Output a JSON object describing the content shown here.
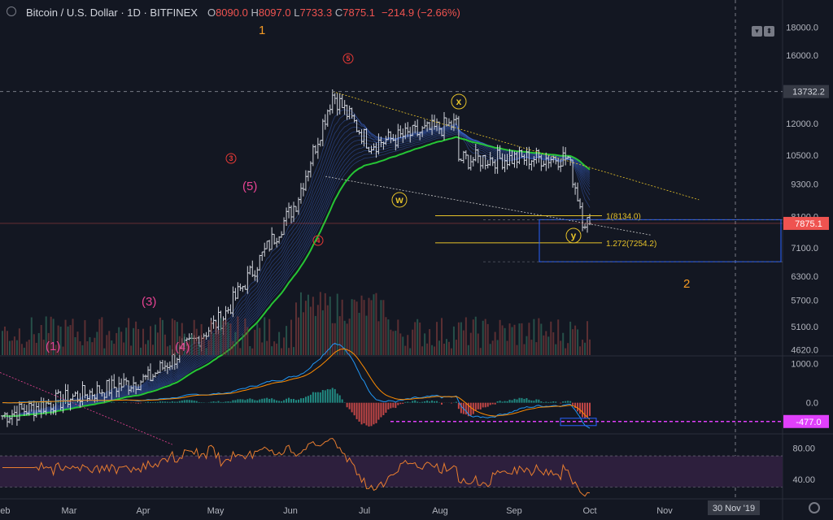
{
  "header": {
    "symbol": "Bitcoin / U.S. Dollar · 1D · BITFINEX",
    "open_label": "O",
    "open": "8090.0",
    "high_label": "H",
    "high": "8097.0",
    "low_label": "L",
    "low": "7733.3",
    "close_label": "C",
    "close": "7875.1",
    "change": "−214.9 (−2.66%)"
  },
  "colors": {
    "background": "#131722",
    "up": "#d1d4dc",
    "axis_text": "#b2b5be",
    "ma_green": "#26c635",
    "ribbon_blue": "#3f6ad8",
    "fib": "#e6c229",
    "wave_red": "#e53935",
    "wave_pink": "#e84393",
    "wave_orange": "#f59a23",
    "box_blue": "#2962ff",
    "macd_hist_up": "#26a69a",
    "macd_hist_down": "#ef5350",
    "macd_line": "#2196f3",
    "signal_line": "#ff8c00",
    "magenta": "#e040fb",
    "rsi_band": "#2d1f3d",
    "rsi_line": "#e87d2f",
    "price_label": "#ef5350"
  },
  "chart_data": {
    "type": "candlestick",
    "price_axis": {
      "scale": "log",
      "ticks": [
        "18000.0",
        "16000.0",
        "13732.2",
        "12000.0",
        "10500.0",
        "9300.0",
        "8100.0",
        "7875.1",
        "7100.0",
        "6300.0",
        "5700.0",
        "5100.0",
        "4620.0"
      ],
      "range": [
        4520,
        20200
      ],
      "last_price": 7875.1,
      "last_price_label": "7875.1",
      "crosshair_price": 13732.2
    },
    "time_axis": {
      "labels": [
        "Feb",
        "Mar",
        "Apr",
        "May",
        "Jun",
        "Jul",
        "Aug",
        "Sep",
        "Oct",
        "Nov"
      ],
      "crosshair_date": "30 Nov '19"
    },
    "price_series_monthly_anchors": [
      {
        "date": "Feb",
        "price": 3500
      },
      {
        "date": "Mar",
        "price": 3800
      },
      {
        "date": "Apr",
        "price": 4100
      },
      {
        "date": "May",
        "price": 5300
      },
      {
        "date": "Jun",
        "price": 8600
      },
      {
        "date": "Jul",
        "price": 11000
      },
      {
        "date": "Aug",
        "price": 10300
      },
      {
        "date": "Sep",
        "price": 9800
      },
      {
        "date": "Oct",
        "price": 7875
      }
    ],
    "elliott_labels": [
      {
        "text": "1",
        "color": "orange"
      },
      {
        "text": "2",
        "color": "orange"
      },
      {
        "text": "(1)",
        "color": "pink"
      },
      {
        "text": "(3)",
        "color": "pink"
      },
      {
        "text": "(4)",
        "color": "pink"
      },
      {
        "text": "(5)",
        "color": "pink"
      },
      {
        "text": "3",
        "color": "red"
      },
      {
        "text": "4",
        "color": "red"
      },
      {
        "text": "5",
        "color": "red"
      },
      {
        "text": "w",
        "color": "fib"
      },
      {
        "text": "x",
        "color": "fib"
      },
      {
        "text": "y",
        "color": "fib"
      }
    ],
    "fib_levels": [
      {
        "label": "1(8134.0)",
        "price": 8134.0
      },
      {
        "label": "1.272(7254.2)",
        "price": 7254.2
      }
    ],
    "macd": {
      "ticks": [
        "1000.0",
        "0.0",
        "-477.0"
      ],
      "current": -477.0,
      "current_label": "-477.0",
      "range": [
        -750,
        1150
      ]
    },
    "rsi": {
      "ticks": [
        "80.00",
        "40.00"
      ],
      "upper": 70,
      "lower": 30,
      "range": [
        17,
        96
      ]
    }
  }
}
